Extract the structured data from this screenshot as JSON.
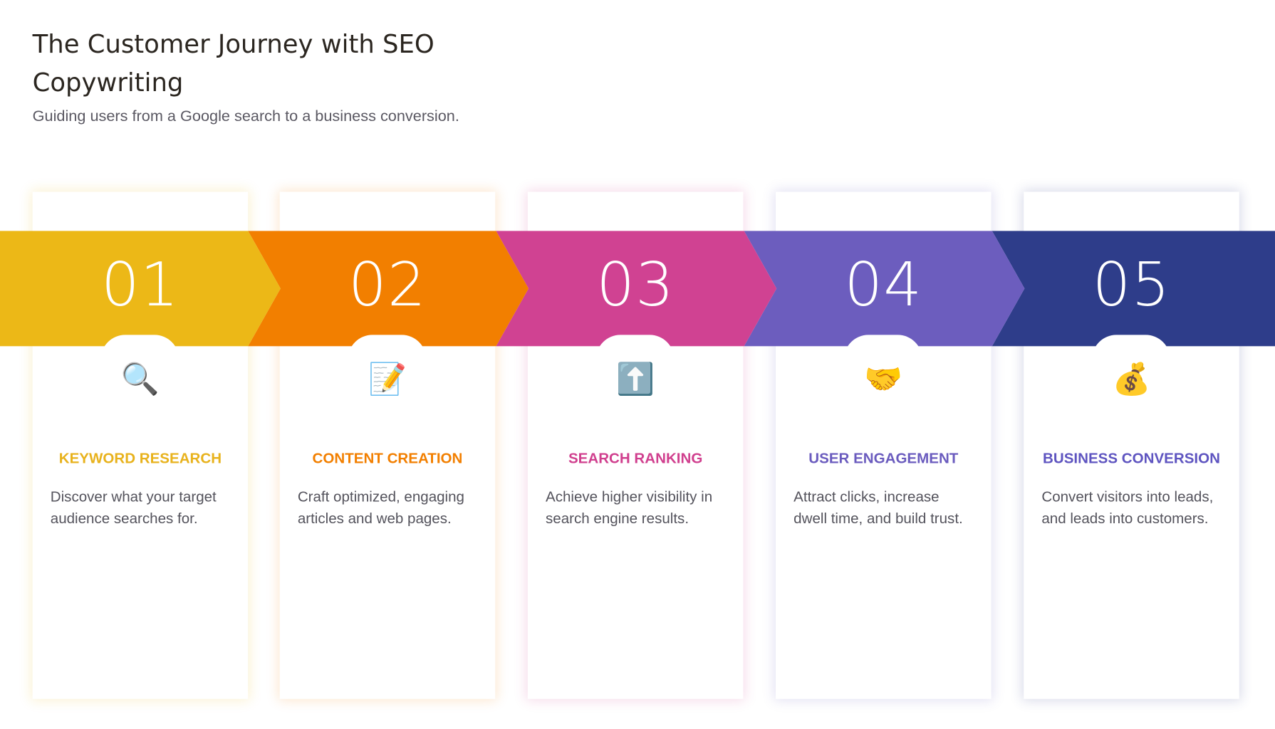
{
  "header": {
    "title": "The Customer Journey with SEO Copywriting",
    "subtitle": "Guiding users from a Google search to a business conversion."
  },
  "steps": [
    {
      "number": "01",
      "icon": "magnifying-glass-icon",
      "glyph": "🔍",
      "title": "KEYWORD RESEARCH",
      "description": "Discover what your target audience searches for.",
      "color": "#ECB817",
      "text_color": "#E8B21C"
    },
    {
      "number": "02",
      "icon": "memo-pencil-icon",
      "glyph": "📝",
      "title": "CONTENT CREATION",
      "description": "Craft optimized, engaging articles and web pages.",
      "color": "#F27F00",
      "text_color": "#F27F00"
    },
    {
      "number": "03",
      "icon": "up-arrow-icon",
      "glyph": "⬆️",
      "title": "SEARCH RANKING",
      "description": "Achieve higher visibility in search engine results.",
      "color": "#D04292",
      "text_color": "#D03F8E"
    },
    {
      "number": "04",
      "icon": "handshake-icon",
      "glyph": "🤝",
      "title": "USER ENGAGEMENT",
      "description": "Attract clicks, increase dwell time, and build trust.",
      "color": "#6C5DBE",
      "text_color": "#6A5BBE"
    },
    {
      "number": "05",
      "icon": "money-bag-icon",
      "glyph": "💰",
      "title": "BUSINESS CONVERSION",
      "description": "Convert visitors into leads, and leads into customers.",
      "color": "#2E3D8A",
      "text_color": "#5E54C0"
    }
  ]
}
